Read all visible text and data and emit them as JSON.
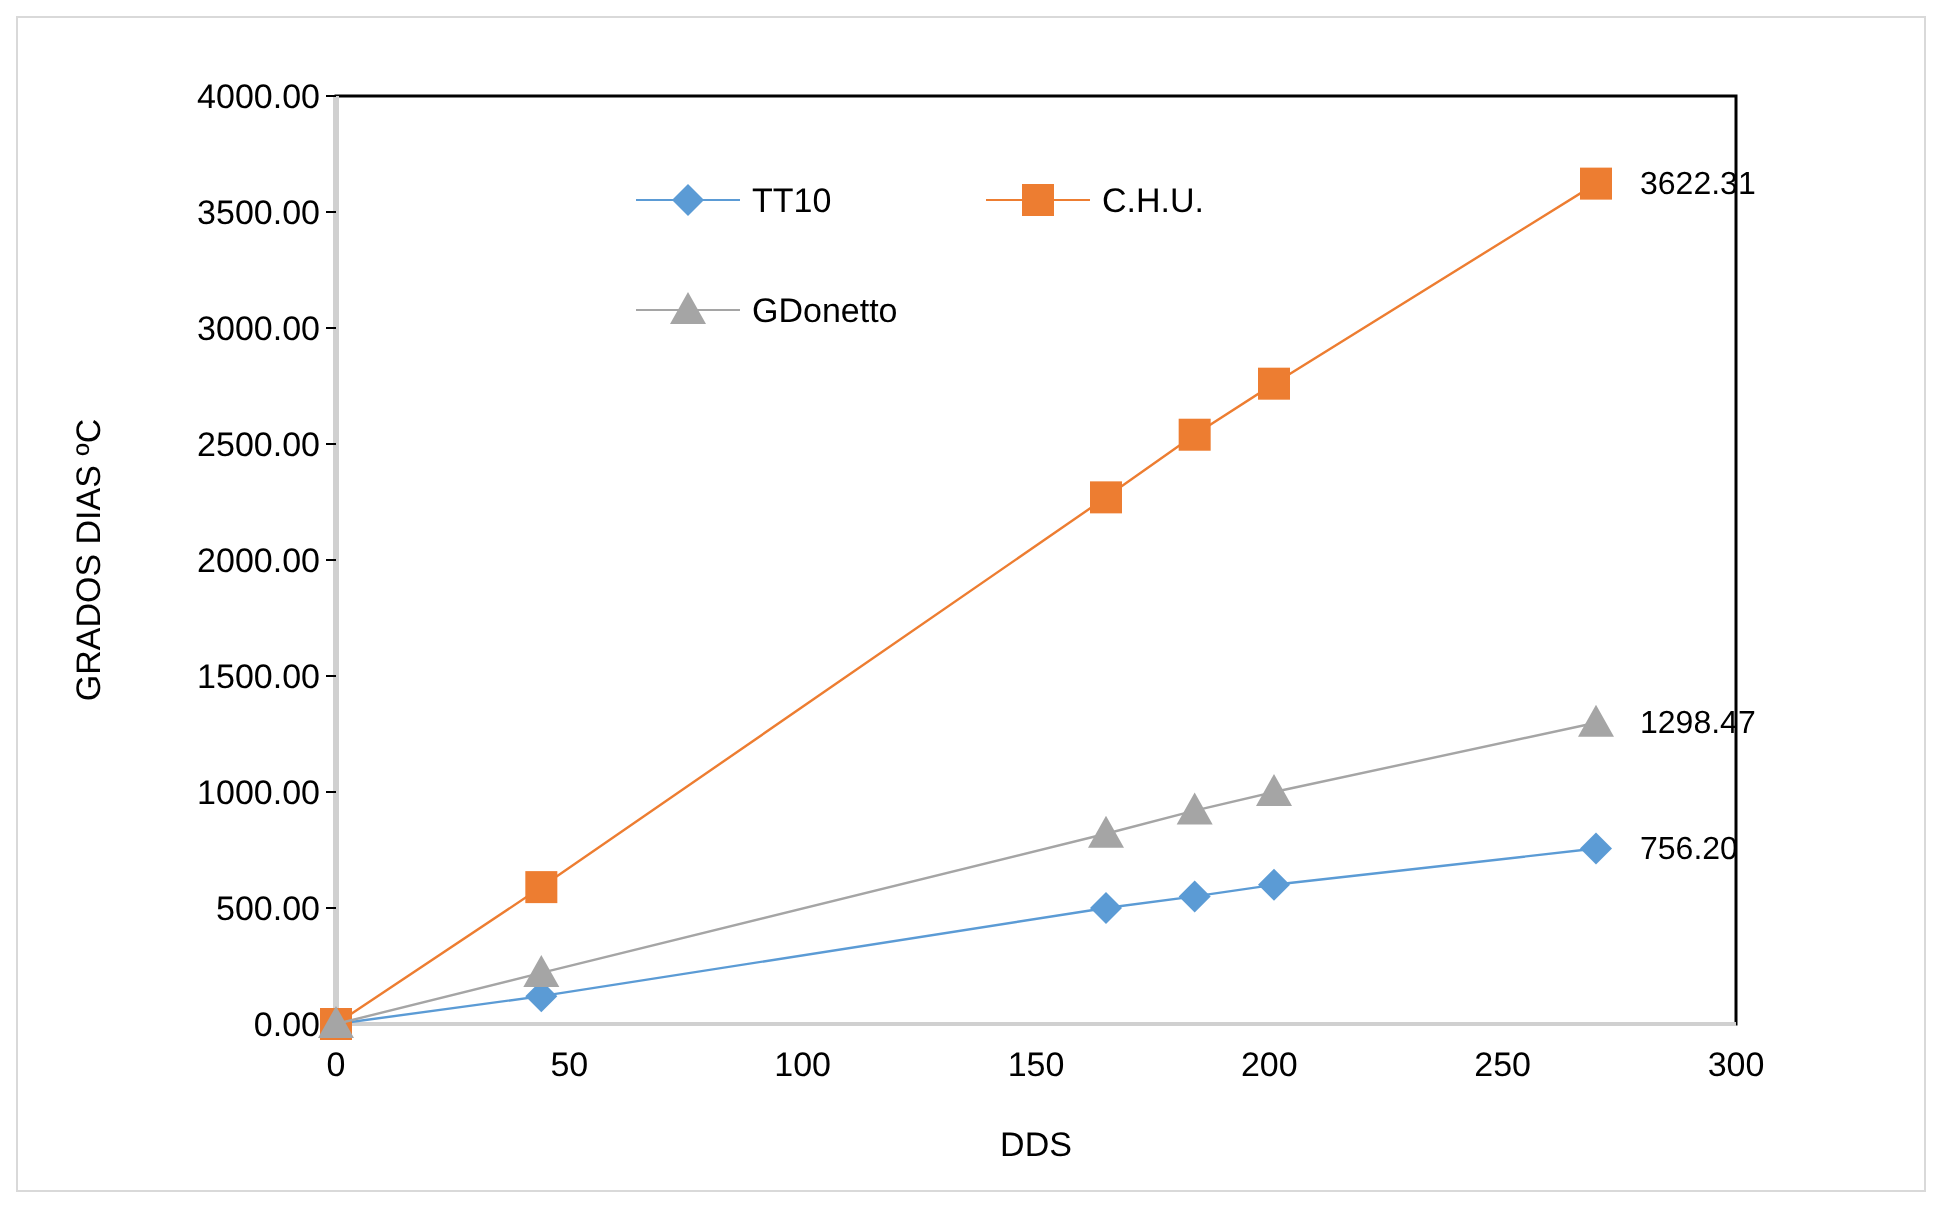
{
  "chart_data": {
    "type": "line",
    "xlabel": "DDS",
    "ylabel": "GRADOS DIAS ºC",
    "xlim": [
      0,
      300
    ],
    "xticks": [
      0,
      50,
      100,
      150,
      200,
      250,
      300
    ],
    "ylim": [
      0,
      4000
    ],
    "yticks": [
      {
        "value": 0,
        "label": "0.00"
      },
      {
        "value": 500,
        "label": "500.00"
      },
      {
        "value": 1000,
        "label": "1000.00"
      },
      {
        "value": 1500,
        "label": "1500.00"
      },
      {
        "value": 2000,
        "label": "2000.00"
      },
      {
        "value": 2500,
        "label": "2500.00"
      },
      {
        "value": 3000,
        "label": "3000.00"
      },
      {
        "value": 3500,
        "label": "3500.00"
      },
      {
        "value": 4000,
        "label": "4000.00"
      }
    ],
    "grid": false,
    "legend": "top",
    "series": [
      {
        "name": "TT10",
        "color": "#5b9bd5",
        "marker": "diamond",
        "x": [
          0,
          44,
          165,
          184,
          201,
          270
        ],
        "values": [
          0,
          120,
          500,
          550,
          600,
          756.2
        ],
        "value_labels": [
          null,
          null,
          null,
          null,
          null,
          "756.20"
        ]
      },
      {
        "name": "C.H.U.",
        "color": "#ed7d31",
        "marker": "square",
        "x": [
          0,
          44,
          165,
          184,
          201,
          270
        ],
        "values": [
          0,
          590,
          2270,
          2540,
          2760,
          3622.31
        ],
        "value_labels": [
          null,
          null,
          null,
          null,
          null,
          "3622.31"
        ]
      },
      {
        "name": "GDonetto",
        "color": "#a5a5a5",
        "marker": "triangle",
        "x": [
          0,
          44,
          165,
          184,
          201,
          270
        ],
        "values": [
          0,
          220,
          820,
          920,
          1000,
          1298.47
        ],
        "value_labels": [
          null,
          null,
          null,
          null,
          null,
          "1298.47"
        ]
      }
    ]
  }
}
